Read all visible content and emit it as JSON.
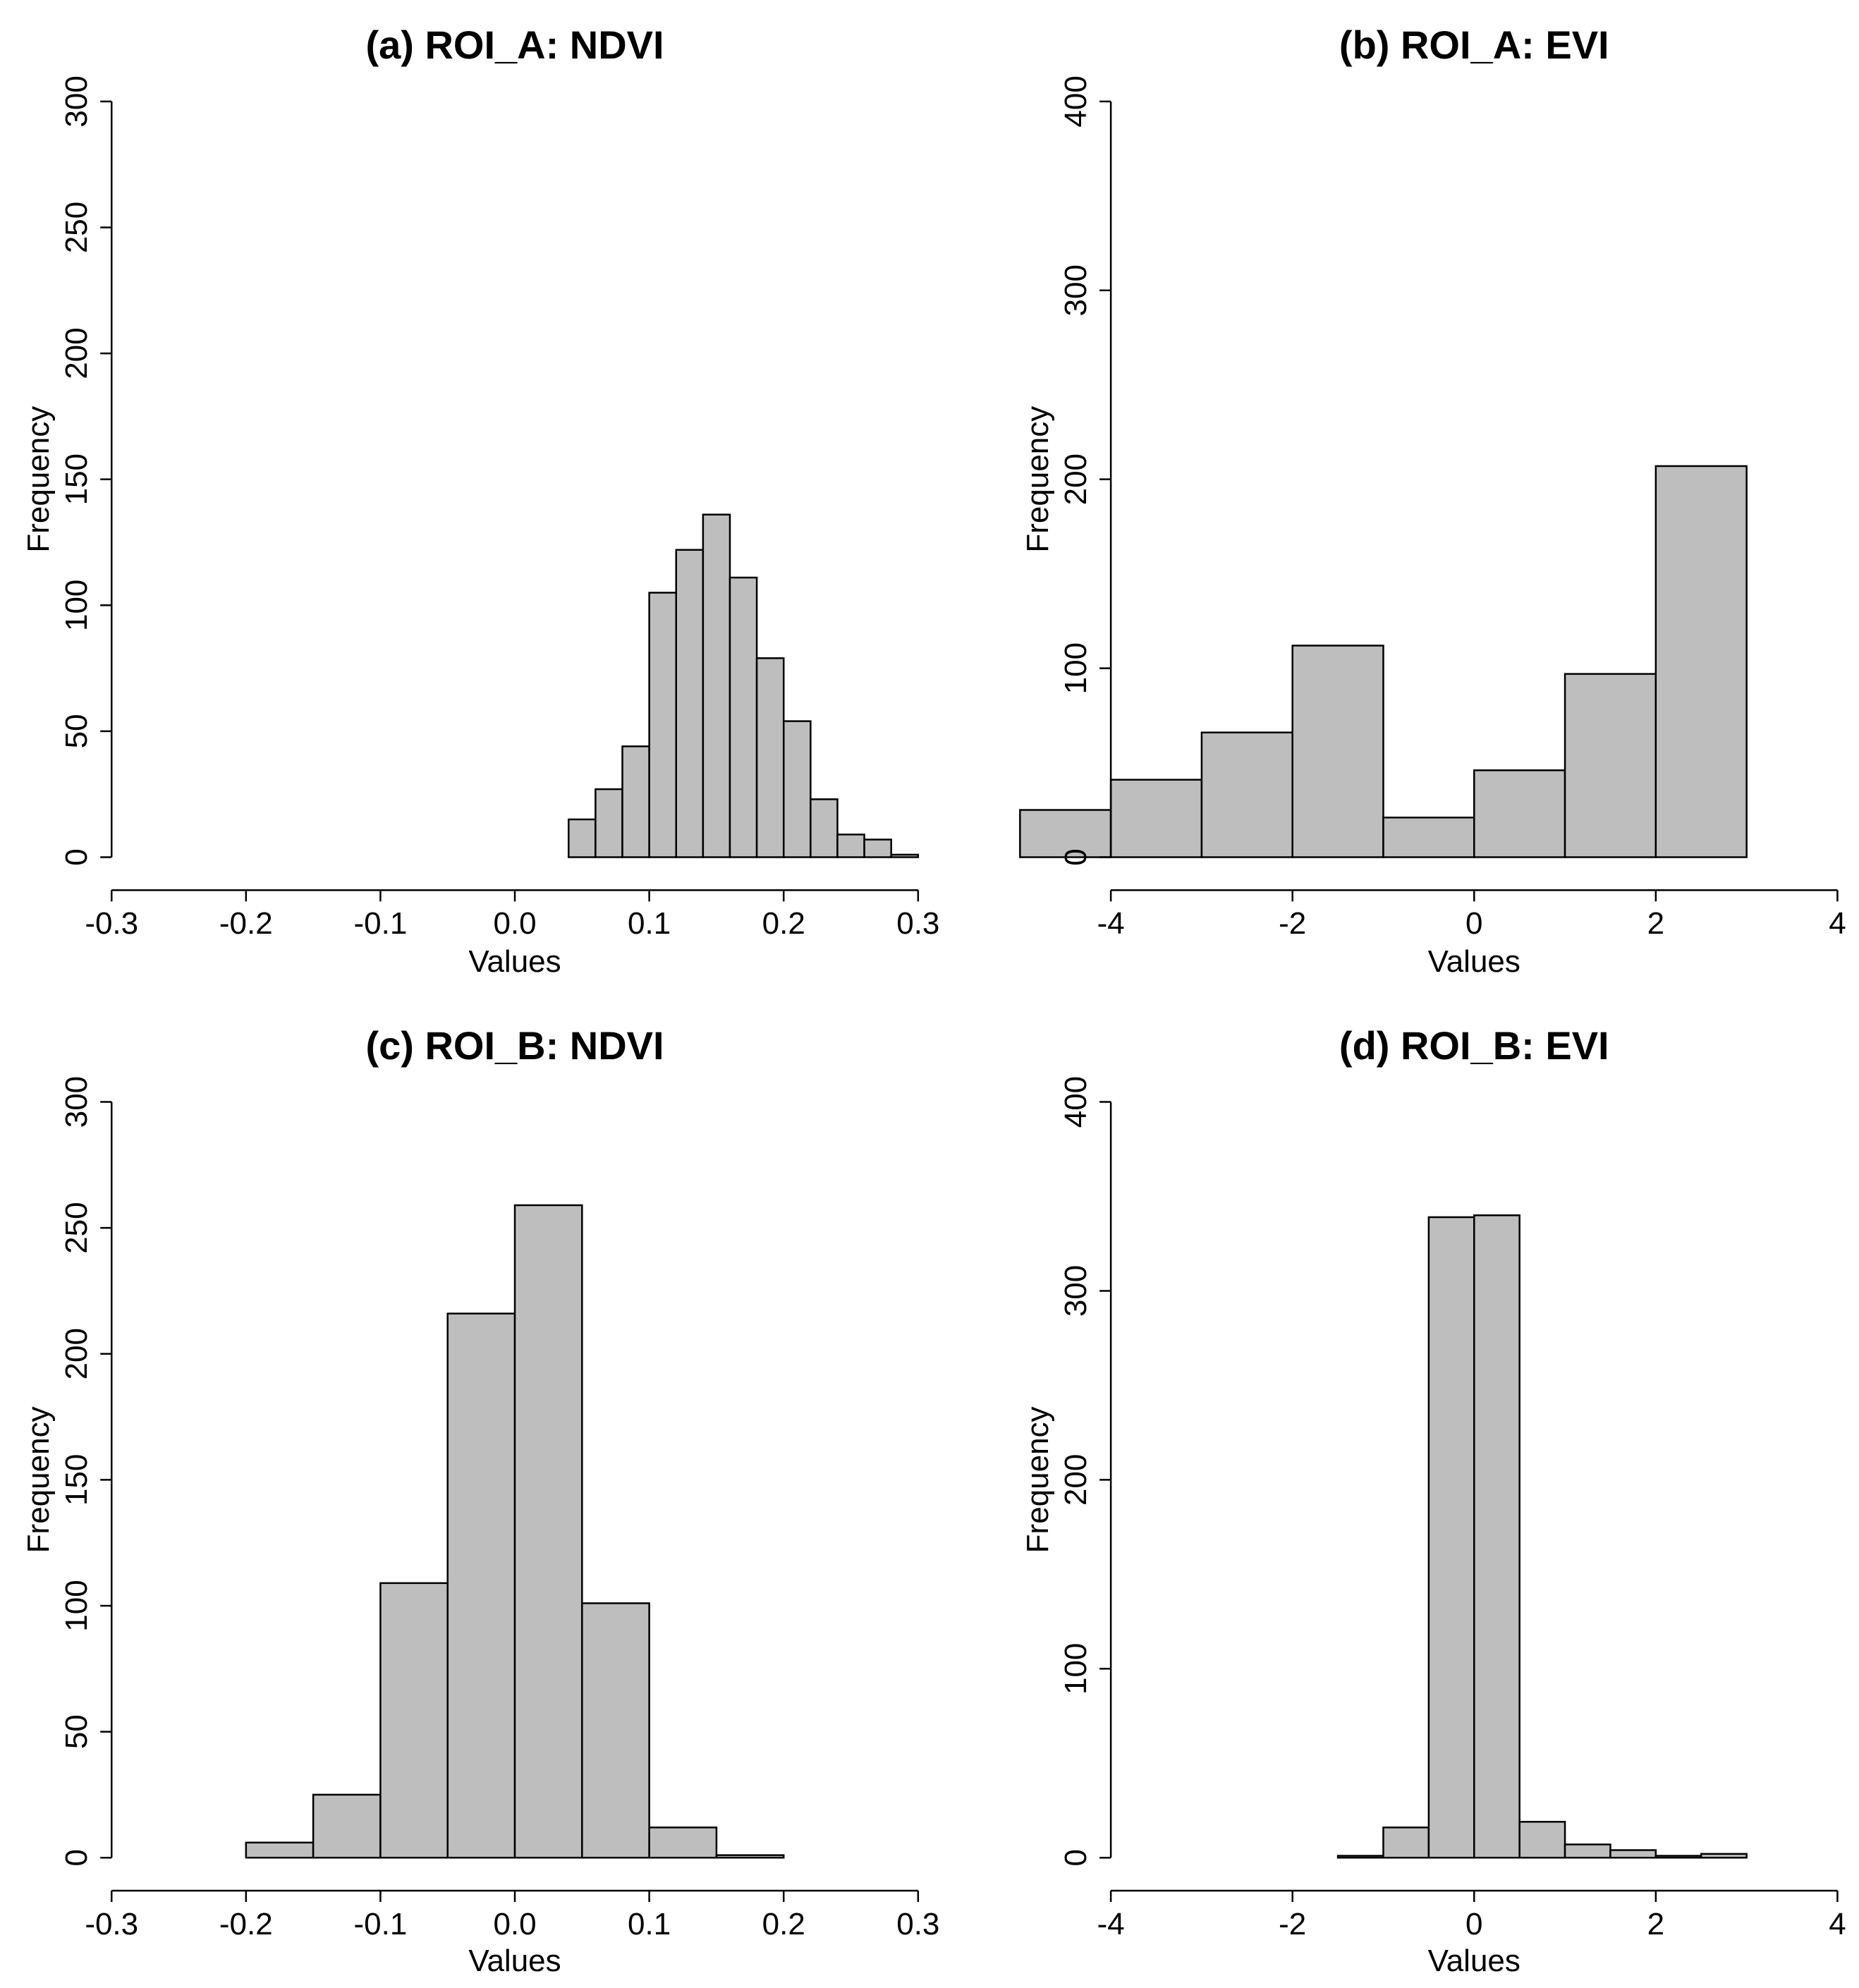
{
  "chart_data": [
    {
      "type": "bar",
      "subtype": "histogram",
      "title": "(a) ROI_A: NDVI",
      "xlabel": "Values",
      "ylabel": "Frequency",
      "xlim": [
        -0.3,
        0.3
      ],
      "ylim": [
        0,
        300
      ],
      "xticks": [
        -0.3,
        -0.2,
        -0.1,
        0.0,
        0.1,
        0.2,
        0.3
      ],
      "xtick_labels": [
        "-0.3",
        "-0.2",
        "-0.1",
        "0.0",
        "0.1",
        "0.2",
        "0.3"
      ],
      "yticks": [
        0,
        50,
        100,
        150,
        200,
        250,
        300
      ],
      "ytick_labels": [
        "0",
        "50",
        "100",
        "150",
        "200",
        "250",
        "300"
      ],
      "bin_edges": [
        0.04,
        0.06,
        0.08,
        0.1,
        0.12,
        0.14,
        0.16,
        0.18,
        0.2,
        0.22,
        0.24,
        0.26,
        0.28,
        0.3
      ],
      "values": [
        15,
        27,
        44,
        105,
        122,
        136,
        111,
        79,
        54,
        23,
        9,
        7,
        1
      ]
    },
    {
      "type": "bar",
      "subtype": "histogram",
      "title": "(b) ROI_A: EVI",
      "xlabel": "Values",
      "ylabel": "Frequency",
      "xlim": [
        -4,
        4
      ],
      "ylim": [
        0,
        400
      ],
      "xticks": [
        -4,
        -2,
        0,
        2,
        4
      ],
      "xtick_labels": [
        "-4",
        "-2",
        "0",
        "2",
        "4"
      ],
      "yticks": [
        0,
        100,
        200,
        300,
        400
      ],
      "ytick_labels": [
        "0",
        "100",
        "200",
        "300",
        "400"
      ],
      "bin_edges": [
        -5,
        -4,
        -3,
        -2,
        -1,
        0,
        1,
        2,
        3
      ],
      "values": [
        25,
        41,
        66,
        112,
        21,
        46,
        97,
        207
      ]
    },
    {
      "type": "bar",
      "subtype": "histogram",
      "title": "(c) ROI_B: NDVI",
      "xlabel": "Values",
      "ylabel": "Frequency",
      "xlim": [
        -0.3,
        0.3
      ],
      "ylim": [
        0,
        300
      ],
      "xticks": [
        -0.3,
        -0.2,
        -0.1,
        0.0,
        0.1,
        0.2,
        0.3
      ],
      "xtick_labels": [
        "-0.3",
        "-0.2",
        "-0.1",
        "0.0",
        "0.1",
        "0.2",
        "0.3"
      ],
      "yticks": [
        0,
        50,
        100,
        150,
        200,
        250,
        300
      ],
      "ytick_labels": [
        "0",
        "50",
        "100",
        "150",
        "200",
        "250",
        "300"
      ],
      "bin_edges": [
        -0.2,
        -0.15,
        -0.1,
        -0.05,
        0.0,
        0.05,
        0.1,
        0.15,
        0.2
      ],
      "values": [
        6,
        25,
        109,
        216,
        259,
        101,
        12,
        1
      ]
    },
    {
      "type": "bar",
      "subtype": "histogram",
      "title": "(d) ROI_B: EVI",
      "xlabel": "Values",
      "ylabel": "Frequency",
      "xlim": [
        -4,
        4
      ],
      "ylim": [
        0,
        400
      ],
      "xticks": [
        -4,
        -2,
        0,
        2,
        4
      ],
      "xtick_labels": [
        "-4",
        "-2",
        "0",
        "2",
        "4"
      ],
      "yticks": [
        0,
        100,
        200,
        300,
        400
      ],
      "ytick_labels": [
        "0",
        "100",
        "200",
        "300",
        "400"
      ],
      "bin_edges": [
        -1.5,
        -1.0,
        -0.5,
        0.0,
        0.5,
        1.0,
        1.5,
        2.0,
        2.5,
        3.0
      ],
      "values": [
        1,
        16,
        339,
        340,
        19,
        7,
        4,
        1,
        2
      ]
    }
  ]
}
